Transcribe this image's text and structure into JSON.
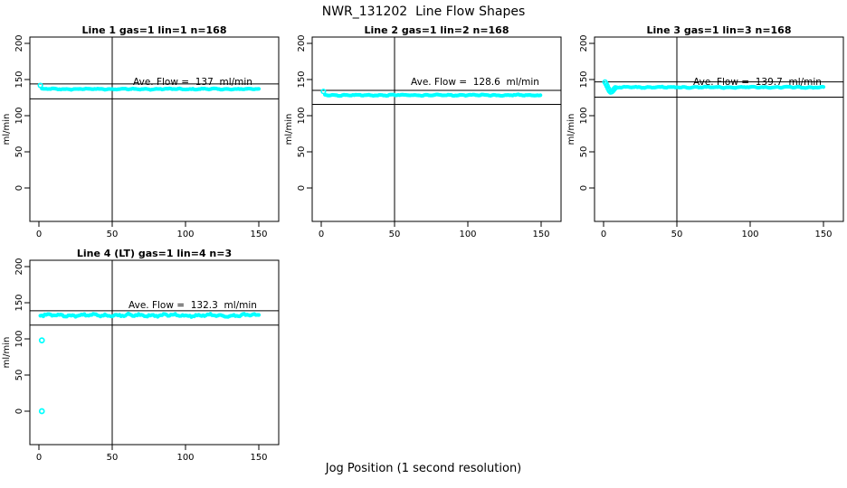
{
  "figure": {
    "title": "NWR_131202  Line Flow Shapes",
    "xlabel": "Jog Position (1 second resolution)",
    "background_color": "#ffffff",
    "axis_color": "#000000",
    "point_color": "#00ffff"
  },
  "chart_data": [
    {
      "type": "scatter",
      "title": "Line 1 gas=1 lin=1 n=168",
      "annotation": "Ave. Flow =  137  ml/min",
      "ave_flow": 137,
      "n": 168,
      "ylabel": "ml/min",
      "x_ticks": [
        0,
        50,
        100,
        150
      ],
      "y_ticks": [
        0,
        50,
        100,
        150,
        200
      ],
      "x_range": [
        0,
        150
      ],
      "y_range": [
        0,
        200
      ],
      "vline_x": 50,
      "ref_lines": [
        143.9,
        123.3
      ],
      "band": {
        "x_start": 2,
        "x_end": 150,
        "value": 136.8,
        "jitter": 0.9
      },
      "start_points": [
        [
          1,
          141.8
        ]
      ],
      "outliers": []
    },
    {
      "type": "scatter",
      "title": "Line 2 gas=1 lin=2 n=168",
      "annotation": "Ave. Flow =  128.6  ml/min",
      "ave_flow": 128.6,
      "n": 168,
      "ylabel": "ml/min",
      "x_ticks": [
        0,
        50,
        100,
        150
      ],
      "y_ticks": [
        0,
        50,
        100,
        150,
        200
      ],
      "x_range": [
        0,
        150
      ],
      "y_range": [
        0,
        200
      ],
      "vline_x": 50,
      "ref_lines": [
        135.0,
        115.7
      ],
      "band": {
        "x_start": 2.5,
        "x_end": 150,
        "value": 128.4,
        "jitter": 0.9
      },
      "start_points": [
        [
          1.5,
          133.5
        ]
      ],
      "outliers": []
    },
    {
      "type": "scatter",
      "title": "Line 3 gas=1 lin=3 n=168",
      "annotation": "Ave. Flow =  139.7  ml/min",
      "ave_flow": 139.7,
      "n": 168,
      "ylabel": "ml/min",
      "x_ticks": [
        0,
        50,
        100,
        150
      ],
      "y_ticks": [
        0,
        50,
        100,
        150,
        200
      ],
      "x_range": [
        0,
        150
      ],
      "y_range": [
        0,
        200
      ],
      "vline_x": 50,
      "ref_lines": [
        146.7,
        125.7
      ],
      "band": {
        "x_start": 8,
        "x_end": 150,
        "value": 139.3,
        "jitter": 0.9
      },
      "start_points": [
        [
          1,
          146.5
        ],
        [
          1.7,
          144.0
        ],
        [
          2.4,
          141.0
        ],
        [
          3.2,
          137.5
        ],
        [
          4.0,
          134.5
        ],
        [
          4.8,
          132.8
        ],
        [
          5.6,
          133.2
        ],
        [
          6.4,
          134.8
        ],
        [
          7.2,
          136.8
        ],
        [
          8.0,
          138.5
        ]
      ],
      "outliers": []
    },
    {
      "type": "scatter",
      "title": "Line 4 (LT) gas=1 lin=4 n=3",
      "annotation": "Ave. Flow =  132.3  ml/min",
      "ave_flow": 132.3,
      "n": 3,
      "ylabel": "ml/min",
      "x_ticks": [
        0,
        50,
        100,
        150
      ],
      "y_ticks": [
        0,
        50,
        100,
        150,
        200
      ],
      "x_range": [
        0,
        150
      ],
      "y_range": [
        0,
        200
      ],
      "vline_x": 50,
      "ref_lines": [
        138.9,
        119.1
      ],
      "band": {
        "x_start": 1,
        "x_end": 150,
        "value": 132.6,
        "jitter": 2.0
      },
      "start_points": [],
      "outliers": [
        [
          2,
          98
        ],
        [
          2,
          0
        ]
      ]
    }
  ]
}
